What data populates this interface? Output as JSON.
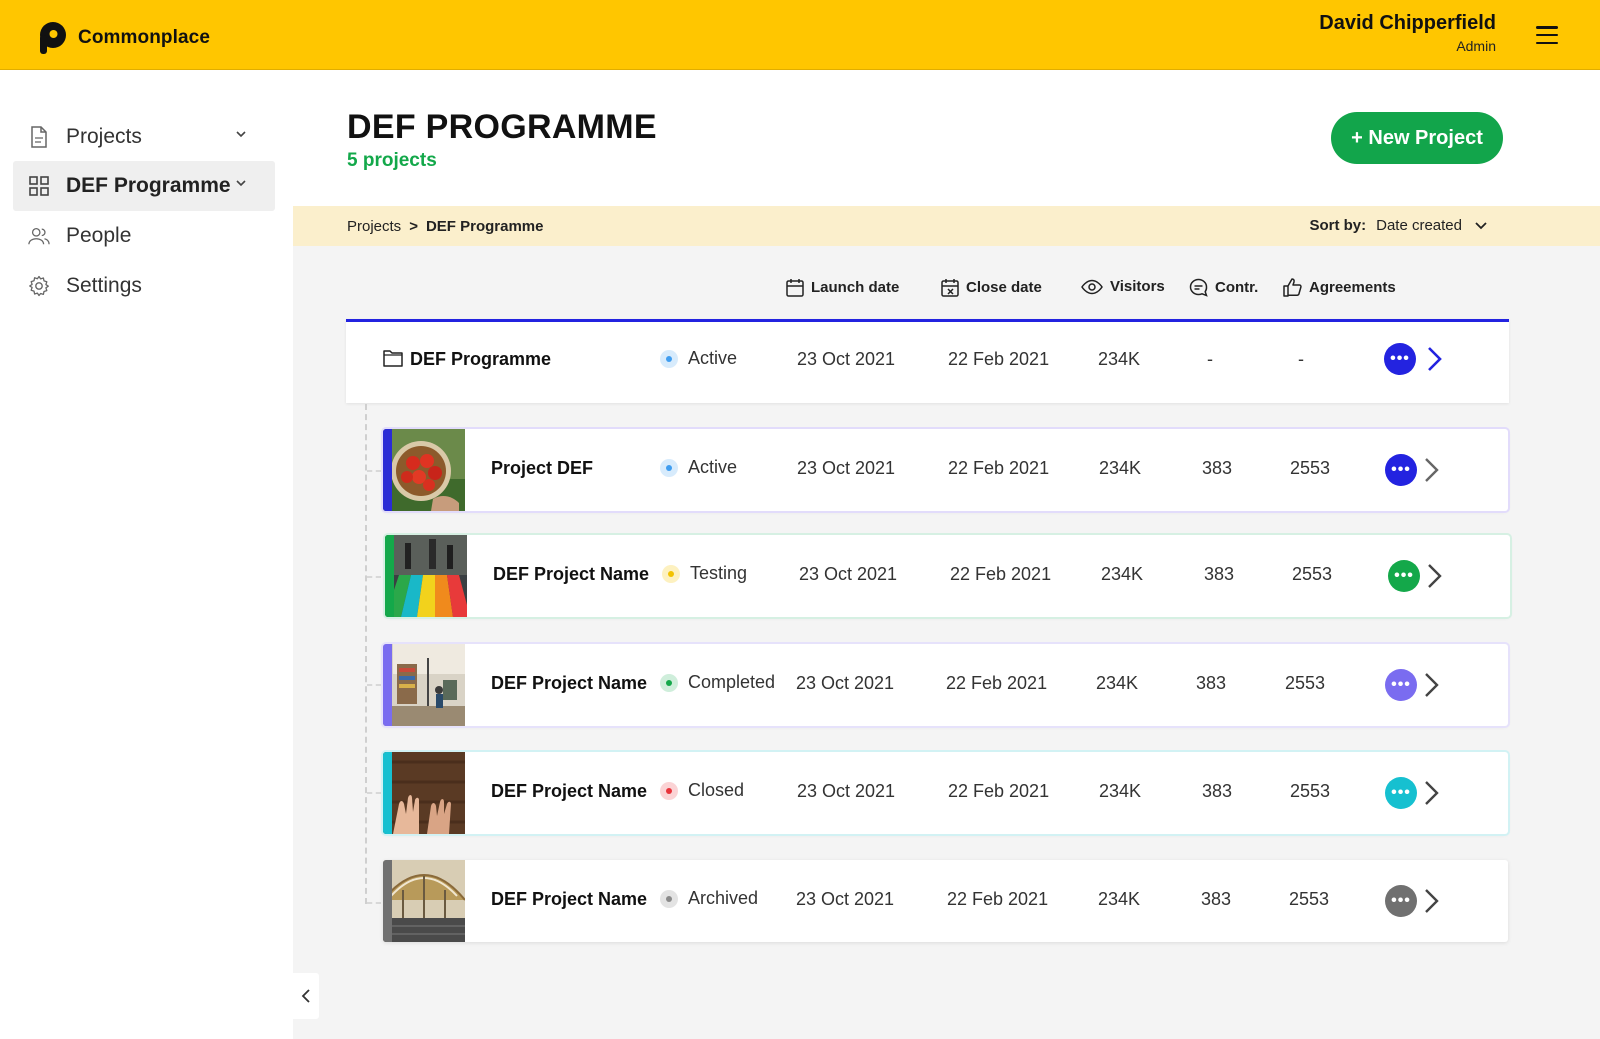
{
  "header": {
    "brand": "Commonplace",
    "user_name": "David Chipperfield",
    "user_role": "Admin",
    "brand_color": "#ffc600"
  },
  "sidebar": {
    "items": [
      {
        "label": "Projects",
        "icon": "document-icon"
      },
      {
        "label": "DEF Programme",
        "icon": "grid-icon"
      },
      {
        "label": "People",
        "icon": "people-icon"
      },
      {
        "label": "Settings",
        "icon": "gear-icon"
      }
    ]
  },
  "page": {
    "title": "DEF PROGRAMME",
    "subtitle": "5 projects",
    "new_button": "+ New Project"
  },
  "breadcrumb": {
    "root": "Projects",
    "separator": ">",
    "current": "DEF Programme"
  },
  "sort": {
    "label": "Sort by:",
    "value": "Date created"
  },
  "columns": {
    "launch": "Launch date",
    "close": "Close date",
    "visitors": "Visitors",
    "contr": "Contr.",
    "agreements": "Agreements"
  },
  "programme": {
    "name": "DEF Programme",
    "status": "Active",
    "launch": "23 Oct 2021",
    "close": "22 Feb 2021",
    "visitors": "234K",
    "contr": "-",
    "agreements": "-"
  },
  "projects": [
    {
      "name": "Project DEF",
      "status": "Active",
      "launch": "23 Oct 2021",
      "close": "22 Feb 2021",
      "visitors": "234K",
      "contr": "383",
      "agreements": "2553",
      "accent": "#2b2bd6"
    },
    {
      "name": "DEF Project Name",
      "status": "Testing",
      "launch": "23 Oct 2021",
      "close": "22 Feb 2021",
      "visitors": "234K",
      "contr": "383",
      "agreements": "2553",
      "accent": "#14a84a"
    },
    {
      "name": "DEF Project Name",
      "status": "Completed",
      "launch": "23 Oct 2021",
      "close": "22 Feb 2021",
      "visitors": "234K",
      "contr": "383",
      "agreements": "2553",
      "accent": "#7a6cf0"
    },
    {
      "name": "DEF Project Name",
      "status": "Closed",
      "launch": "23 Oct 2021",
      "close": "22 Feb 2021",
      "visitors": "234K",
      "contr": "383",
      "agreements": "2553",
      "accent": "#16c0d0"
    },
    {
      "name": "DEF Project Name",
      "status": "Archived",
      "launch": "23 Oct 2021",
      "close": "22 Feb 2021",
      "visitors": "234K",
      "contr": "383",
      "agreements": "2553",
      "accent": "#707070"
    }
  ],
  "colors": {
    "active": "#3f9df0",
    "testing": "#f2c200",
    "completed": "#14a84a",
    "closed": "#e8333b",
    "archived": "#8a8a8a",
    "primary": "#2323e0",
    "cta": "#12a54b"
  }
}
